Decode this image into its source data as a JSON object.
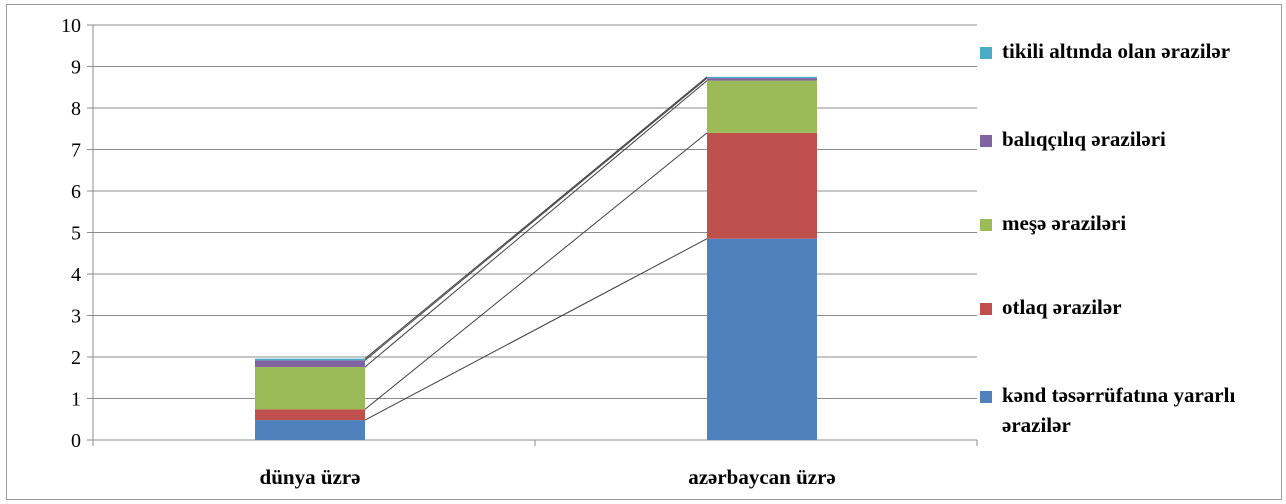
{
  "chart_data": {
    "type": "bar",
    "stacked": true,
    "categories": [
      "dünya üzrə",
      "azərbaycan üzrə"
    ],
    "series": [
      {
        "name": "kənd təsərrüfatına yararlı ərazilər",
        "color": "#4f81bd",
        "values": [
          0.48,
          4.85
        ]
      },
      {
        "name": "otlaq ərazilər",
        "color": "#c0504d",
        "values": [
          0.26,
          2.55
        ]
      },
      {
        "name": "meşə əraziləri",
        "color": "#9bbb59",
        "values": [
          1.02,
          1.26
        ]
      },
      {
        "name": "balıqçılıq əraziləri",
        "color": "#8064a2",
        "values": [
          0.16,
          0.06
        ]
      },
      {
        "name": "tikili altında olan ərazilər",
        "color": "#4bacc6",
        "values": [
          0.04,
          0.03
        ]
      }
    ],
    "ylim": [
      0,
      10
    ],
    "yticks": [
      "0",
      "1",
      "2",
      "3",
      "4",
      "5",
      "6",
      "7",
      "8",
      "9",
      "10"
    ],
    "grid": true,
    "series_lines": true,
    "legend_position": "right"
  }
}
